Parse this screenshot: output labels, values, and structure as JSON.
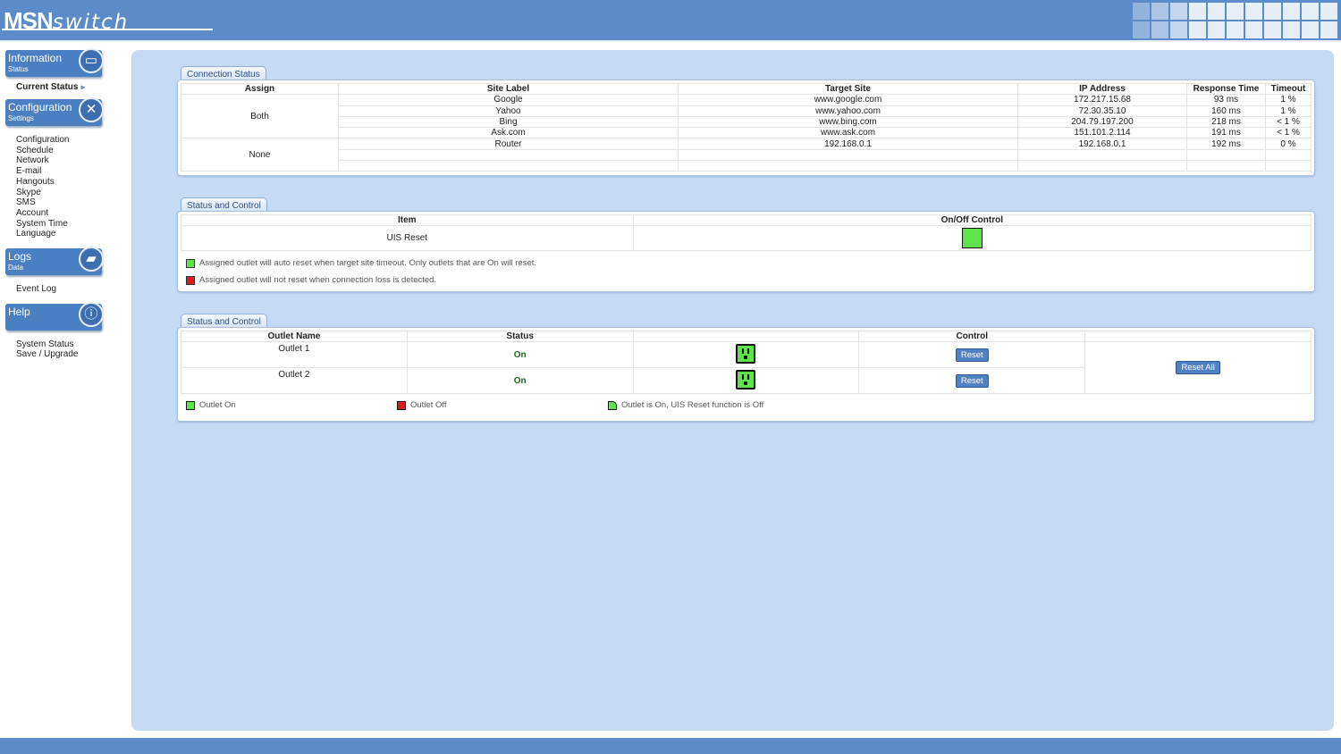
{
  "header": {
    "logo_bold": "MSN",
    "logo_italic": "switch"
  },
  "colors": {
    "accent": "#5b8bc9",
    "panel": "#c6daf3",
    "on": "#5fe34a",
    "off": "#d81c1c"
  },
  "nav": {
    "information": {
      "title": "Information",
      "subtitle": "Status",
      "items": [
        "Current Status"
      ]
    },
    "configuration": {
      "title": "Configuration",
      "subtitle": "Settings",
      "items": [
        "Configuration",
        "Schedule",
        "Network",
        "E-mail",
        "Hangouts",
        "Skype",
        "SMS",
        "Account",
        "System Time",
        "Language"
      ]
    },
    "logs": {
      "title": "Logs",
      "subtitle": "Data",
      "items": [
        "Event Log"
      ]
    },
    "help": {
      "title": "Help",
      "subtitle": "",
      "items": [
        "System Status",
        "Save / Upgrade"
      ]
    }
  },
  "connection": {
    "tab": "Connection Status",
    "headers": [
      "Assign",
      "Site Label",
      "Target Site",
      "IP Address",
      "Response Time",
      "Timeout"
    ],
    "groups": [
      {
        "assign": "Both",
        "rows": [
          [
            "Google",
            "www.google.com",
            "172.217.15.68",
            "93 ms",
            "1 %"
          ],
          [
            "Yahoo",
            "www.yahoo.com",
            "72.30.35.10",
            "160 ms",
            "1 %"
          ],
          [
            "Bing",
            "www.bing.com",
            "204.79.197.200",
            "218 ms",
            "< 1 %"
          ],
          [
            "Ask.com",
            "www.ask.com",
            "151.101.2.114",
            "191 ms",
            "< 1 %"
          ]
        ]
      },
      {
        "assign": "None",
        "rows": [
          [
            "Router",
            "192.168.0.1",
            "192.168.0.1",
            "192 ms",
            "0 %"
          ],
          [
            "",
            "",
            "",
            "",
            ""
          ],
          [
            "",
            "",
            "",
            "",
            ""
          ]
        ]
      }
    ]
  },
  "uis": {
    "tab": "Status and Control",
    "headers": [
      "Item",
      "On/Off Control"
    ],
    "item": "UIS Reset",
    "state": "on",
    "legend": [
      "Assigned outlet will auto reset when target site timeout. Only outlets that are On will reset.",
      "Assigned outlet will not reset when connection loss is detected."
    ]
  },
  "outlets": {
    "tab": "Status and Control",
    "headers": [
      "Outlet Name",
      "Status",
      "",
      "Control",
      ""
    ],
    "rows": [
      {
        "name": "Outlet 1",
        "status": "On",
        "button": "Reset"
      },
      {
        "name": "Outlet 2",
        "status": "On",
        "button": "Reset"
      }
    ],
    "reset_all": "Reset All",
    "legend": [
      "Outlet On",
      "Outlet Off",
      "Outlet is On, UIS Reset function is Off"
    ]
  }
}
